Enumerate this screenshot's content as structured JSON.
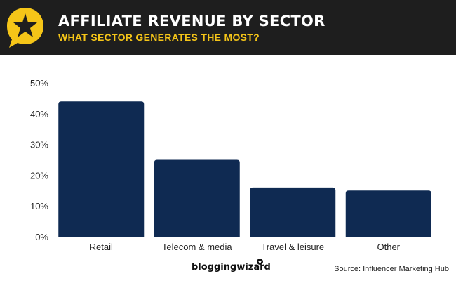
{
  "header": {
    "title": "AFFILIATE REVENUE BY SECTOR",
    "subtitle": "WHAT SECTOR GENERATES THE MOST?",
    "icon": "star-speech-bubble-icon",
    "accent_color": "#f5c518",
    "background_color": "#1e1e1e"
  },
  "chart_data": {
    "type": "bar",
    "title": "AFFILIATE REVENUE BY SECTOR",
    "subtitle": "WHAT SECTOR GENERATES THE MOST?",
    "categories": [
      "Retail",
      "Telecom & media",
      "Travel & leisure",
      "Other"
    ],
    "values": [
      44,
      25,
      16,
      15
    ],
    "value_unit": "%",
    "xlabel": "",
    "ylabel": "",
    "ylim": [
      0,
      50
    ],
    "yticks": [
      "0%",
      "10%",
      "20%",
      "30%",
      "40%",
      "50%"
    ],
    "bar_color": "#0f2a52",
    "grid": false,
    "legend": "none"
  },
  "footer": {
    "brand": "bloggingwizard",
    "source": "Source: Influencer Marketing Hub"
  }
}
